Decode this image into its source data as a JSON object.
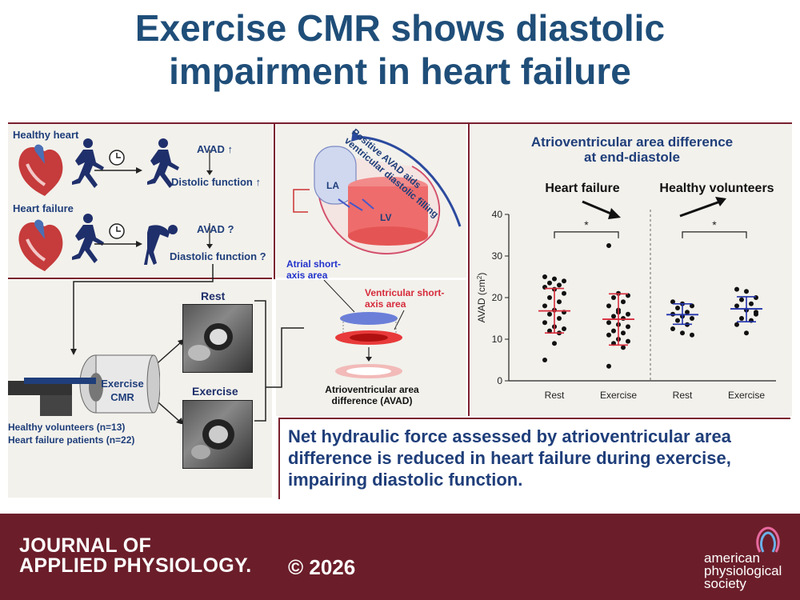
{
  "title": {
    "line1": "Exercise CMR shows diastolic",
    "line2": "impairment in heart failure"
  },
  "left_panel": {
    "healthy_label": "Healthy heart",
    "healthy_avad": "AVAD",
    "healthy_function": "Distolic function",
    "hf_label": "Heart failure",
    "hf_avad": "AVAD ?",
    "hf_function": "Diastolic function ?",
    "arrow_up": "↑"
  },
  "heart_diagram": {
    "la": "LA",
    "lv": "LV",
    "arrow_text_1": "Positive AVAD aids",
    "arrow_text_2": "ventricular diastolic filling"
  },
  "cmr": {
    "rest": "Rest",
    "exercise": "Exercise",
    "machine_1": "Exercise",
    "machine_2": "CMR",
    "healthy_n": "Healthy volunteers (n=13)",
    "hf_n": "Heart failure patients (n=22)"
  },
  "avad_diagram": {
    "atrial_1": "Atrial short-",
    "atrial_2": "axis area",
    "ventricular_1": "Ventricular short-",
    "ventricular_2": "axis area",
    "caption_1": "Atrioventricular area",
    "caption_2": "difference (AVAD)"
  },
  "chart_data": {
    "type": "scatter",
    "title": "Atrioventricular area difference at end-diastole",
    "title_line1": "Atrioventricular area difference",
    "title_line2": "at end-diastole",
    "ylabel": "AVAD (cm",
    "ylabel_sup": "2",
    "ylabel_end": ")",
    "ylim": [
      0,
      40
    ],
    "yticks": [
      0,
      10,
      20,
      30,
      40
    ],
    "categories": [
      "Rest",
      "Exercise",
      "Rest",
      "Exercise"
    ],
    "groups": [
      {
        "name": "Heart failure",
        "label": "Heart failure",
        "color": "#d62b3a"
      },
      {
        "name": "Healthy volunteers",
        "label": "Healthy volunteers",
        "color": "#2233aa"
      }
    ],
    "significance": "*",
    "series": [
      {
        "category": "Rest",
        "group": "Heart failure",
        "mean": 16.8,
        "sd_low": 11.5,
        "sd_high": 22.2,
        "values": [
          25,
          24.5,
          24,
          23.5,
          23,
          22.5,
          22,
          21,
          20,
          19,
          18,
          17,
          16.5,
          16,
          15,
          14,
          13,
          12.5,
          12,
          11.5,
          5,
          9
        ]
      },
      {
        "category": "Exercise",
        "group": "Heart failure",
        "mean": 14.8,
        "sd_low": 8.6,
        "sd_high": 20.9,
        "values": [
          32.5,
          21,
          20.5,
          20,
          19,
          18,
          17,
          16,
          15.5,
          15,
          14,
          13.5,
          13,
          12,
          11.5,
          11,
          10,
          9.5,
          9,
          8,
          3.5,
          16.5
        ]
      },
      {
        "category": "Rest",
        "group": "Healthy volunteers",
        "mean": 15.9,
        "sd_low": 13.6,
        "sd_high": 18.5,
        "values": [
          19,
          18.5,
          18,
          17.5,
          16.5,
          16,
          15.5,
          15,
          14.5,
          13.5,
          12.5,
          11.5,
          11
        ]
      },
      {
        "category": "Exercise",
        "group": "Healthy volunteers",
        "mean": 17.3,
        "sd_low": 14.2,
        "sd_high": 20.2,
        "values": [
          22,
          21.5,
          20,
          19.5,
          18.5,
          18,
          17,
          16,
          15,
          14.5,
          13.5,
          11.5,
          16.5
        ]
      }
    ]
  },
  "conclusion": "Net hydraulic force assessed by atrioventricular area difference is reduced in heart failure during exercise, impairing diastolic function.",
  "footer": {
    "journal_1": "JOURNAL OF",
    "journal_2": "APPLIED PHYSIOLOGY.",
    "copyright": "© 2026",
    "society_1": "american",
    "society_2": "physiological",
    "society_3": "society"
  },
  "colors": {
    "title": "#1f4e79",
    "footer": "#6b1e2a",
    "hf": "#d62b3a",
    "healthy": "#2233aa"
  }
}
